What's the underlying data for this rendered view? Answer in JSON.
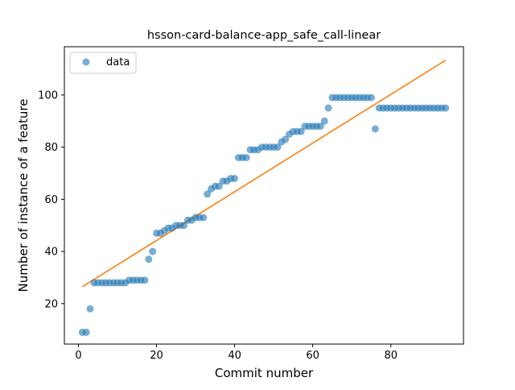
{
  "chart_data": {
    "type": "scatter",
    "title": "hsson-card-balance-app_safe_call-linear",
    "xlabel": "Commit number",
    "ylabel": "Number of instance of a feature",
    "xlim": [
      -3.6,
      98.6
    ],
    "ylim": [
      4.5,
      118.5
    ],
    "xticks": [
      0,
      20,
      40,
      60,
      80
    ],
    "yticks": [
      20,
      40,
      60,
      80,
      100
    ],
    "grid": false,
    "legend": {
      "position": "top-left",
      "entries": [
        "data"
      ]
    },
    "colors": {
      "data": "#1f77b4",
      "fit": "#ff7f0e"
    },
    "series": [
      {
        "name": "data",
        "kind": "scatter",
        "x": [
          1,
          2,
          3,
          4,
          5,
          6,
          7,
          8,
          9,
          10,
          11,
          12,
          13,
          14,
          15,
          16,
          17,
          18,
          19,
          20,
          21,
          22,
          23,
          24,
          25,
          26,
          27,
          28,
          29,
          30,
          31,
          32,
          33,
          34,
          35,
          36,
          37,
          38,
          39,
          40,
          41,
          42,
          43,
          44,
          45,
          46,
          47,
          48,
          49,
          50,
          51,
          52,
          53,
          54,
          55,
          56,
          57,
          58,
          59,
          60,
          61,
          62,
          63,
          64,
          65,
          66,
          67,
          68,
          69,
          70,
          71,
          72,
          73,
          74,
          75,
          76,
          77,
          78,
          79,
          80,
          81,
          82,
          83,
          84,
          85,
          86,
          87,
          88,
          89,
          90,
          91,
          92,
          93,
          94
        ],
        "y": [
          9,
          9,
          18,
          28,
          28,
          28,
          28,
          28,
          28,
          28,
          28,
          28,
          29,
          29,
          29,
          29,
          29,
          37,
          40,
          47,
          47,
          48,
          49,
          49,
          50,
          50,
          50,
          52,
          52,
          53,
          53,
          53,
          62,
          64,
          65,
          65,
          67,
          67,
          68,
          68,
          76,
          76,
          76,
          79,
          79,
          79,
          80,
          80,
          80,
          80,
          80,
          82,
          83,
          85,
          86,
          86,
          86,
          88,
          88,
          88,
          88,
          88,
          90,
          95,
          99,
          99,
          99,
          99,
          99,
          99,
          99,
          99,
          99,
          99,
          99,
          87,
          95,
          95,
          95,
          95,
          95,
          95,
          95,
          95,
          95,
          95,
          95,
          95,
          95,
          95,
          95,
          95,
          95,
          95
        ]
      },
      {
        "kind": "line",
        "x": [
          1,
          94
        ],
        "y": [
          26.5,
          113.3
        ]
      }
    ]
  }
}
